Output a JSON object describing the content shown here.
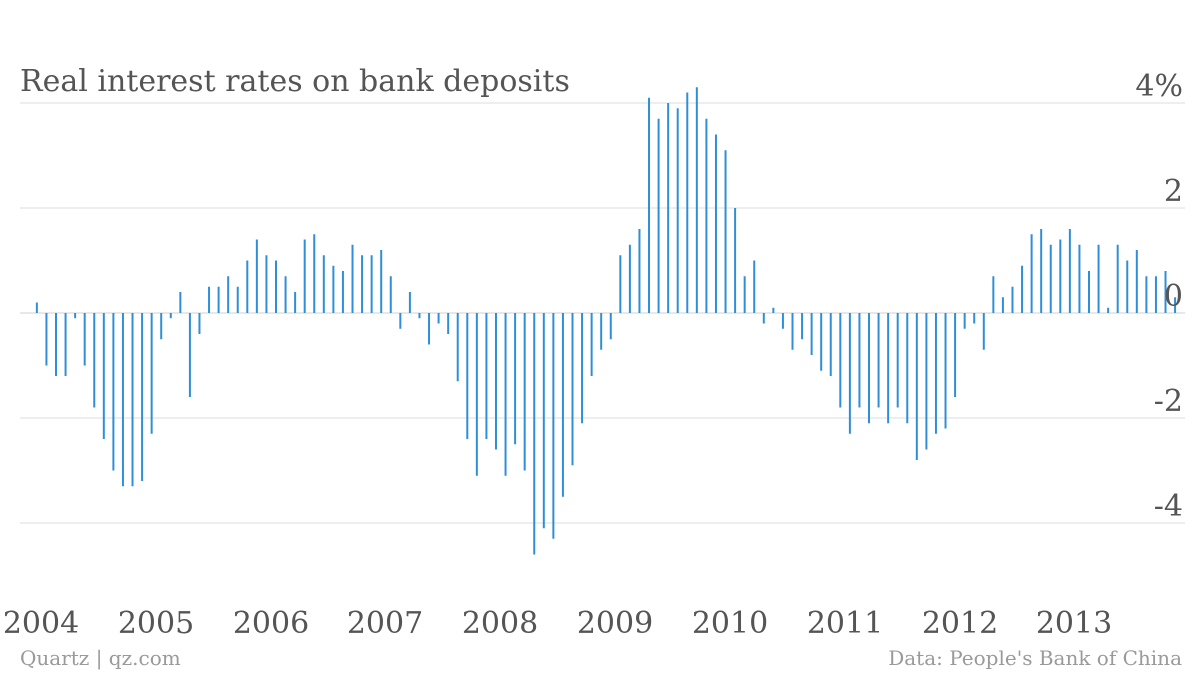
{
  "source_left": "Quartz | qz.com",
  "source_right": "Data: People's Bank of China",
  "colors": {
    "bars": "#2f8fd6",
    "grid": "#dddddd",
    "text": "#555555",
    "footer": "#9a9a9a"
  },
  "chart_data": {
    "type": "bar",
    "title": "Real interest rates on bank deposits",
    "ylim": [
      -5.2,
      4.4
    ],
    "yticks": [
      {
        "value": 4,
        "label": "4%"
      },
      {
        "value": 2,
        "label": "2"
      },
      {
        "value": 0,
        "label": "0"
      },
      {
        "value": -2,
        "label": "-2"
      },
      {
        "value": -4,
        "label": "-4"
      }
    ],
    "xlim": [
      "2003-11",
      "2013-12"
    ],
    "xticks": [
      "2004",
      "2005",
      "2006",
      "2007",
      "2008",
      "2009",
      "2010",
      "2011",
      "2012",
      "2013"
    ],
    "grid": true,
    "start_month": "2003-11",
    "frequency": "monthly",
    "values": [
      0.2,
      -1.0,
      -1.2,
      -1.2,
      -0.1,
      -1.0,
      -1.8,
      -2.4,
      -3.0,
      -3.3,
      -3.3,
      -3.2,
      -2.3,
      -0.5,
      -0.1,
      0.4,
      -1.6,
      -0.4,
      0.5,
      0.5,
      0.7,
      0.5,
      1.0,
      1.4,
      1.1,
      1.0,
      0.7,
      0.4,
      1.4,
      1.5,
      1.1,
      0.9,
      0.8,
      1.3,
      1.1,
      1.1,
      1.2,
      0.7,
      -0.3,
      0.4,
      -0.1,
      -0.6,
      -0.2,
      -0.4,
      -1.3,
      -2.4,
      -3.1,
      -2.4,
      -2.6,
      -3.1,
      -2.5,
      -3.0,
      -4.6,
      -4.1,
      -4.3,
      -3.5,
      -2.9,
      -2.1,
      -1.2,
      -0.7,
      -0.5,
      1.1,
      1.3,
      1.6,
      4.1,
      3.7,
      4.0,
      3.9,
      4.2,
      4.3,
      3.7,
      3.4,
      3.1,
      2.0,
      0.7,
      1.0,
      -0.2,
      0.1,
      -0.3,
      -0.7,
      -0.5,
      -0.8,
      -1.1,
      -1.2,
      -1.8,
      -2.3,
      -1.8,
      -2.1,
      -1.8,
      -2.1,
      -1.8,
      -2.1,
      -2.8,
      -2.6,
      -2.3,
      -2.2,
      -1.6,
      -0.3,
      -0.2,
      -0.7,
      0.7,
      0.3,
      0.5,
      0.9,
      1.5,
      1.6,
      1.3,
      1.4,
      1.6,
      1.3,
      0.8,
      1.3,
      0.1,
      1.3,
      1.0,
      1.2,
      0.7,
      0.7,
      0.8,
      0.3
    ]
  }
}
